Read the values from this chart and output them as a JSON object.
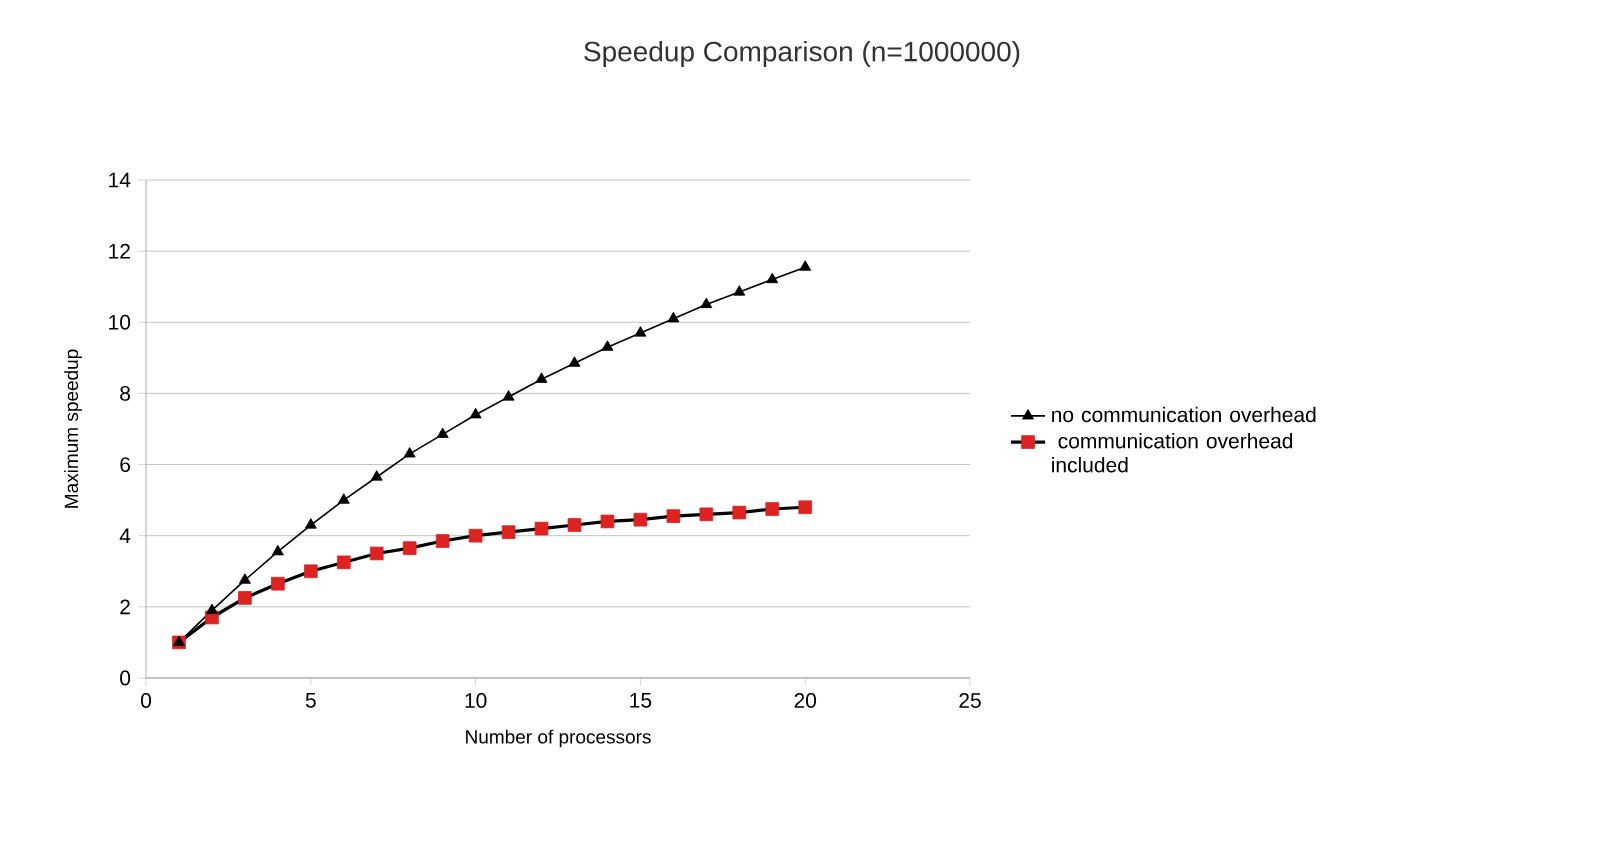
{
  "chart_data": {
    "type": "line",
    "title": "Speedup Comparison (n=1000000)",
    "xlabel": "Number of processors",
    "ylabel": "Maximum speedup",
    "x": [
      1,
      2,
      3,
      4,
      5,
      6,
      7,
      8,
      9,
      10,
      11,
      12,
      13,
      14,
      15,
      16,
      17,
      18,
      19,
      20
    ],
    "series": [
      {
        "name": "no communication overhead",
        "color": "#000000",
        "marker": "triangle",
        "values": [
          1.0,
          1.9,
          2.75,
          3.55,
          4.3,
          5.0,
          5.65,
          6.3,
          6.85,
          7.4,
          7.9,
          8.4,
          8.85,
          9.3,
          9.7,
          10.1,
          10.5,
          10.85,
          11.2,
          11.55
        ]
      },
      {
        "name": " communication overhead included",
        "color": "#dd2222",
        "marker": "square",
        "values": [
          1.0,
          1.7,
          2.25,
          2.65,
          3.0,
          3.25,
          3.5,
          3.65,
          3.85,
          4.0,
          4.1,
          4.2,
          4.3,
          4.4,
          4.45,
          4.55,
          4.6,
          4.65,
          4.75,
          4.8
        ]
      }
    ],
    "xlim": [
      0,
      25
    ],
    "xticks": [
      0,
      5,
      10,
      15,
      20,
      25
    ],
    "ylim": [
      0,
      14
    ],
    "yticks": [
      0,
      2,
      4,
      6,
      8,
      10,
      12,
      14
    ],
    "grid": "y",
    "legend": "right"
  }
}
